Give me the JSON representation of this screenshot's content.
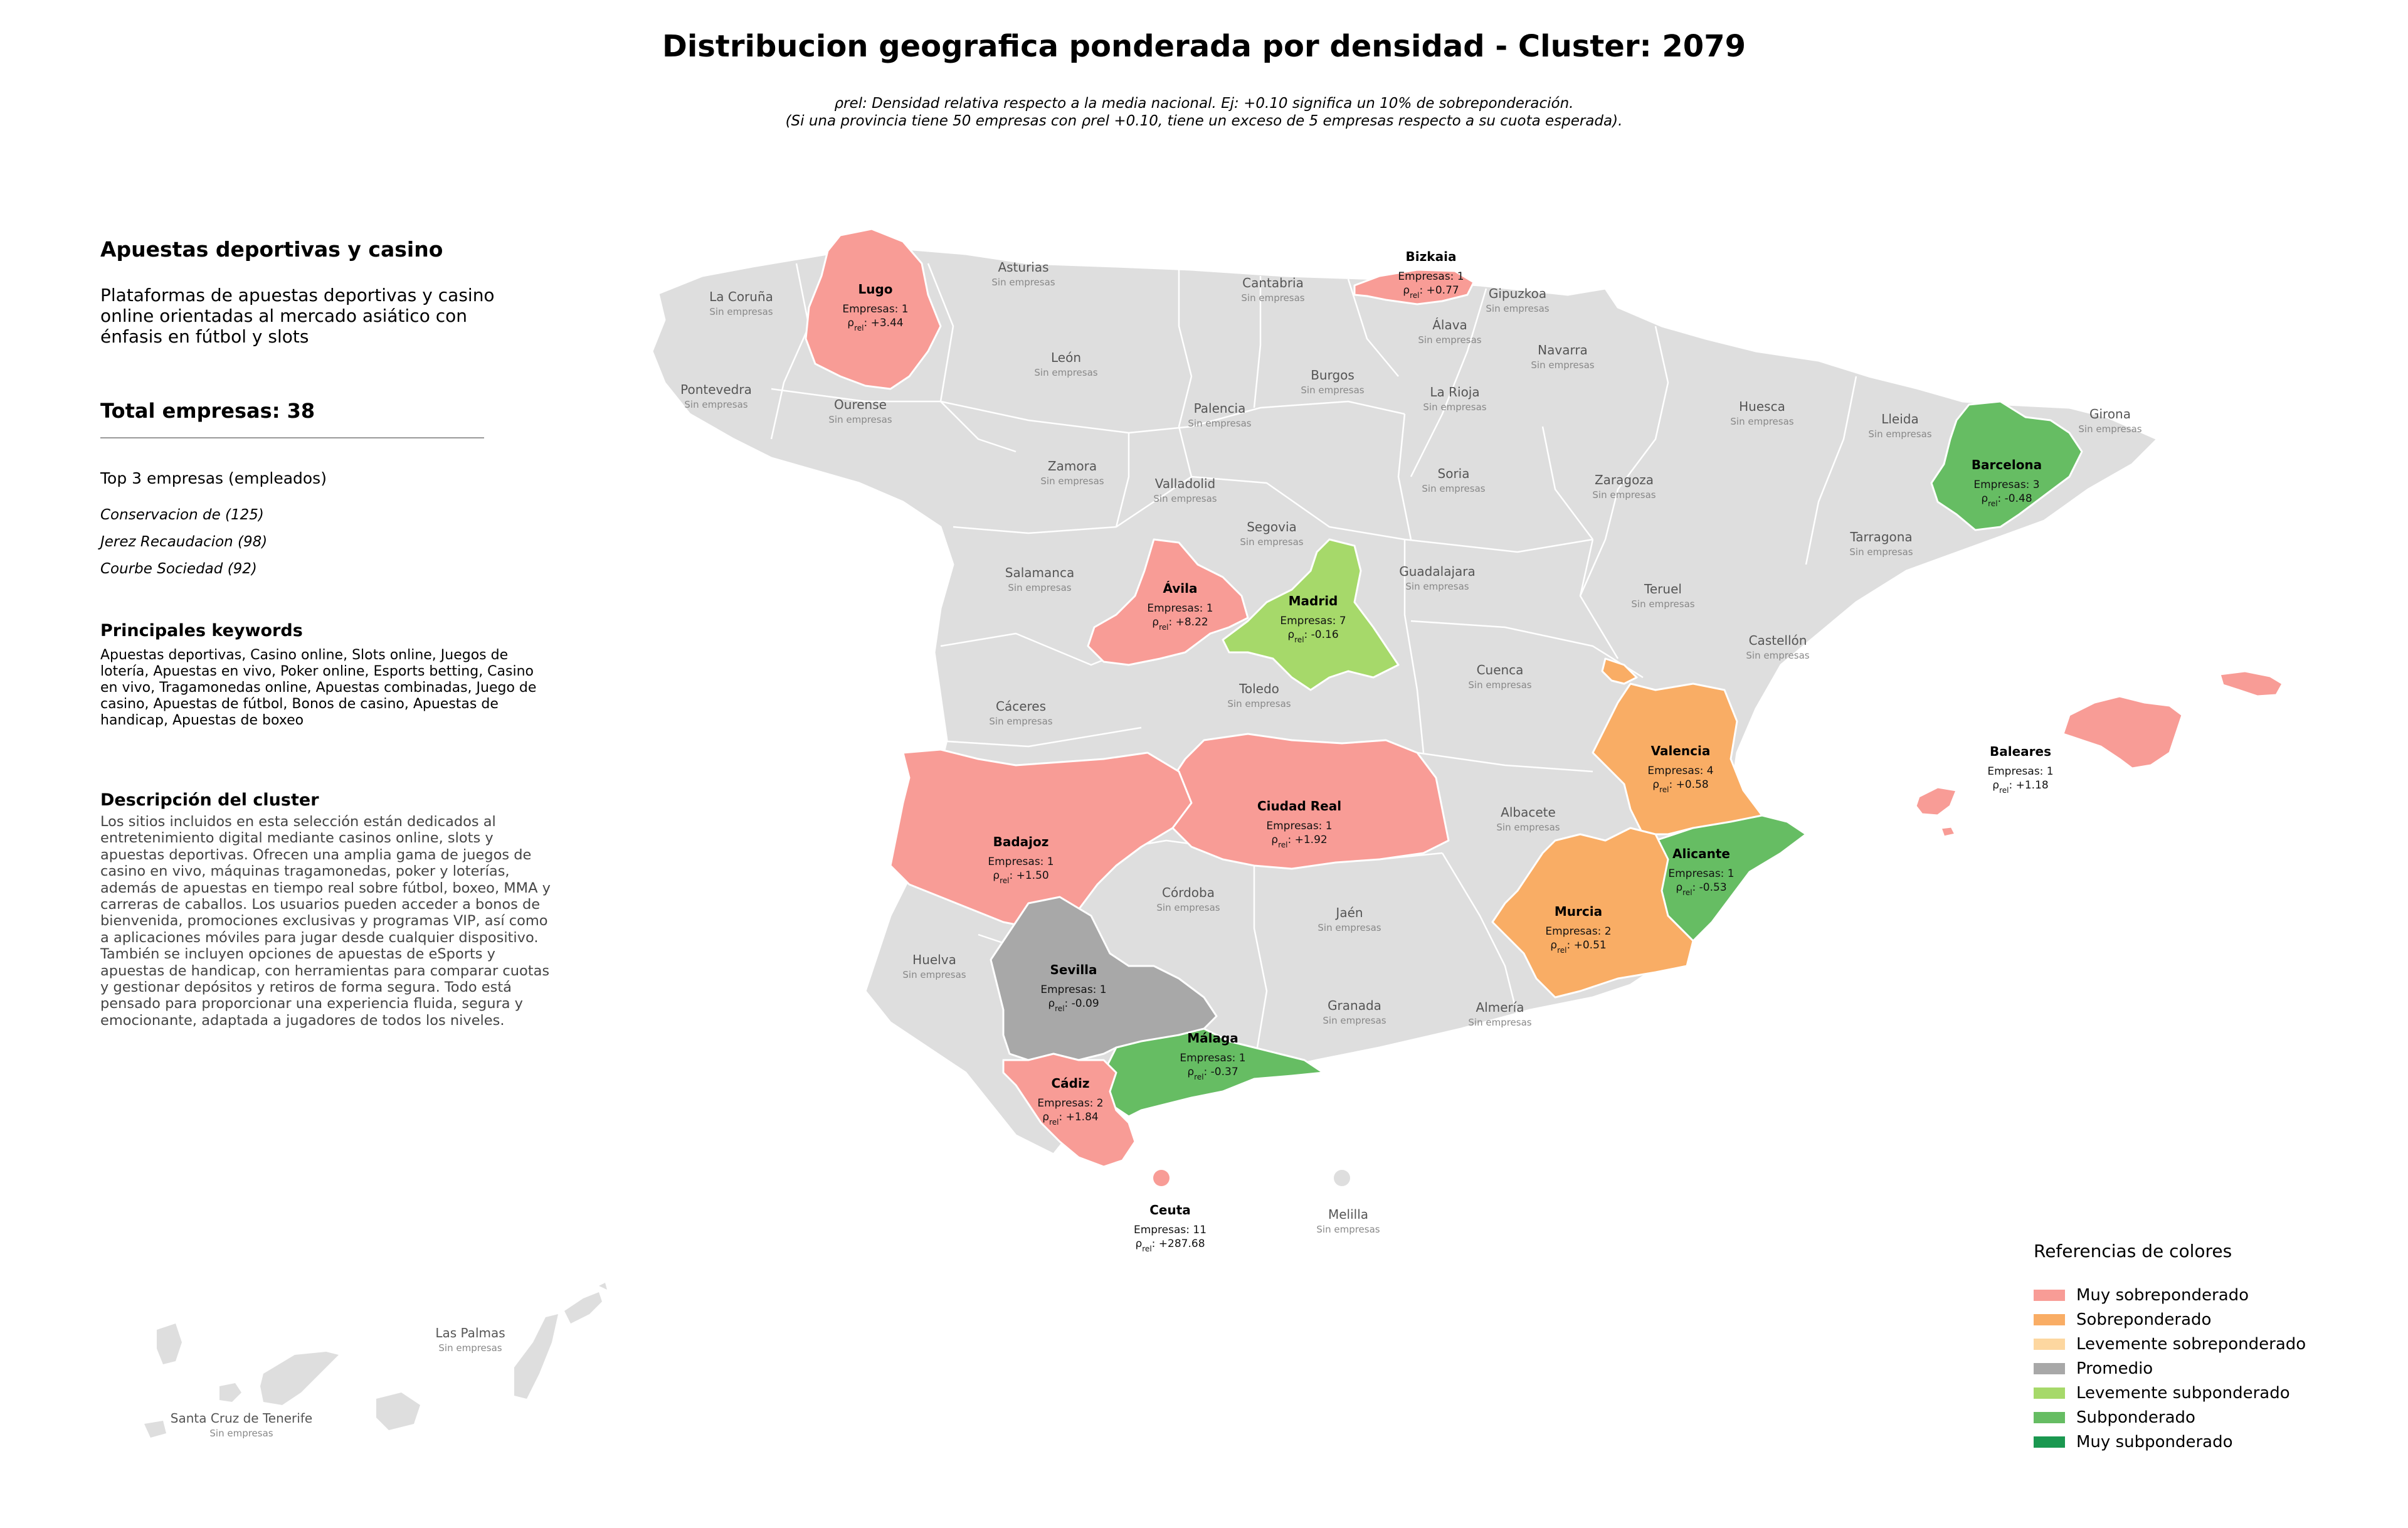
{
  "title": "Distribucion geografica ponderada por densidad - Cluster: 2079",
  "subtitle_line1": "ρrel: Densidad relativa respecto a la media nacional. Ej: +0.10 significa un 10% de sobreponderación.",
  "subtitle_line2": "(Si una provincia tiene 50 empresas con ρrel +0.10, tiene un exceso de 5 empresas respecto a su cuota esperada).",
  "panel": {
    "heading": "Apuestas deportivas y casino",
    "description": "Plataformas de apuestas deportivas y casino online orientadas al mercado asiático con énfasis en fútbol y slots",
    "total_label": "Total empresas: 38",
    "top3_heading": "Top 3 empresas (empleados)",
    "top3": [
      "Conservacion de (125)",
      "Jerez Recaudacion (98)",
      "Courbe Sociedad (92)"
    ],
    "keywords_heading": "Principales keywords",
    "keywords_text": "Apuestas deportivas, Casino online, Slots online, Juegos de lotería, Apuestas en vivo, Poker online, Esports betting, Casino en vivo, Tragamonedas online, Apuestas combinadas, Juego de casino, Apuestas de fútbol, Bonos de casino, Apuestas de handicap, Apuestas de boxeo",
    "cluster_desc_heading": "Descripción del cluster",
    "cluster_desc_text": "Los sitios incluidos en esta selección están dedicados al entretenimiento digital mediante casinos online, slots y apuestas deportivas. Ofrecen una amplia gama de juegos de casino en vivo, máquinas tragamonedas, poker y loterías, además de apuestas en tiempo real sobre fútbol, boxeo, MMA y carreras de caballos. Los usuarios pueden acceder a bonos de bienvenida, promociones exclusivas y programas VIP, así como a aplicaciones móviles para jugar desde cualquier dispositivo. También se incluyen opciones de apuestas de eSports y apuestas de handicap, con herramientas para comparar cuotas y gestionar depósitos y retiros de forma segura. Todo está pensado para proporcionar una experiencia fluida, segura y emocionante, adaptada a jugadores de todos los niveles."
  },
  "no_companies_label": "Sin empresas",
  "empty_provinces": [
    "La Coruña",
    "Asturias",
    "Cantabria",
    "Gipuzkoa",
    "Álava",
    "Navarra",
    "Pontevedra",
    "Ourense",
    "León",
    "Burgos",
    "La Rioja",
    "Palencia",
    "Huesca",
    "Lleida",
    "Girona",
    "Zamora",
    "Valladolid",
    "Soria",
    "Zaragoza",
    "Segovia",
    "Tarragona",
    "Salamanca",
    "Guadalajara",
    "Teruel",
    "Castellón",
    "Cuenca",
    "Toledo",
    "Cáceres",
    "Albacete",
    "Córdoba",
    "Jaén",
    "Huelva",
    "Granada",
    "Almería",
    "Melilla",
    "Las Palmas",
    "Santa Cruz de Tenerife"
  ],
  "highlighted_provinces": [
    {
      "name": "Lugo",
      "count_label": "Empresas: 1",
      "rho_label": "ρrel: +3.44",
      "category": "Muy sobreponderado"
    },
    {
      "name": "Bizkaia",
      "count_label": "Empresas: 1",
      "rho_label": "ρrel: +0.77",
      "category": "Muy sobreponderado"
    },
    {
      "name": "Barcelona",
      "count_label": "Empresas: 3",
      "rho_label": "ρrel: -0.48",
      "category": "Subponderado"
    },
    {
      "name": "Ávila",
      "count_label": "Empresas: 1",
      "rho_label": "ρrel: +8.22",
      "category": "Muy sobreponderado"
    },
    {
      "name": "Madrid",
      "count_label": "Empresas: 7",
      "rho_label": "ρrel: -0.16",
      "category": "Levemente subponderado"
    },
    {
      "name": "Valencia",
      "count_label": "Empresas: 4",
      "rho_label": "ρrel: +0.58",
      "category": "Sobreponderado"
    },
    {
      "name": "Baleares",
      "count_label": "Empresas: 1",
      "rho_label": "ρrel: +1.18",
      "category": "Muy sobreponderado"
    },
    {
      "name": "Ciudad Real",
      "count_label": "Empresas: 1",
      "rho_label": "ρrel: +1.92",
      "category": "Muy sobreponderado"
    },
    {
      "name": "Badajoz",
      "count_label": "Empresas: 1",
      "rho_label": "ρrel: +1.50",
      "category": "Muy sobreponderado"
    },
    {
      "name": "Alicante",
      "count_label": "Empresas: 1",
      "rho_label": "ρrel: -0.53",
      "category": "Subponderado"
    },
    {
      "name": "Murcia",
      "count_label": "Empresas: 2",
      "rho_label": "ρrel: +0.51",
      "category": "Sobreponderado"
    },
    {
      "name": "Sevilla",
      "count_label": "Empresas: 1",
      "rho_label": "ρrel: -0.09",
      "category": "Promedio"
    },
    {
      "name": "Málaga",
      "count_label": "Empresas: 1",
      "rho_label": "ρrel: -0.37",
      "category": "Subponderado"
    },
    {
      "name": "Cádiz",
      "count_label": "Empresas: 2",
      "rho_label": "ρrel: +1.84",
      "category": "Muy sobreponderado"
    },
    {
      "name": "Ceuta",
      "count_label": "Empresas: 11",
      "rho_label": "ρrel: +287.68",
      "category": "Muy sobreponderado"
    }
  ],
  "legend": {
    "title": "Referencias de colores",
    "items": [
      {
        "label": "Muy sobreponderado",
        "color": "#f89c96"
      },
      {
        "label": "Sobreponderado",
        "color": "#f9ad65"
      },
      {
        "label": "Levemente sobreponderado",
        "color": "#fdd7a0"
      },
      {
        "label": "Promedio",
        "color": "#a8a8a8"
      },
      {
        "label": "Levemente subponderado",
        "color": "#a6d96a"
      },
      {
        "label": "Subponderado",
        "color": "#66bd63"
      },
      {
        "label": "Muy subponderado",
        "color": "#1a9850"
      }
    ]
  },
  "colors": {
    "empty_province": "#dedede",
    "border": "#ffffff"
  }
}
